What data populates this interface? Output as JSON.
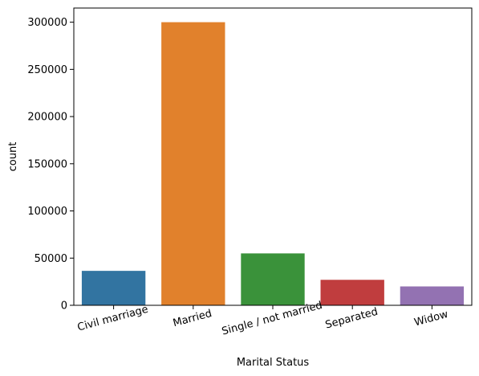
{
  "chart_data": {
    "type": "bar",
    "title": "",
    "xlabel": "Marital Status",
    "ylabel": "count",
    "categories": [
      "Civil marriage",
      "Married",
      "Single / not married",
      "Separated",
      "Widow"
    ],
    "values": [
      36500,
      300000,
      55000,
      27000,
      20000
    ],
    "colors": [
      "#3274a1",
      "#e1812c",
      "#3a923a",
      "#c03d3e",
      "#9372b2"
    ],
    "ylim": [
      0,
      315000
    ],
    "yticks": [
      0,
      50000,
      100000,
      150000,
      200000,
      250000,
      300000
    ],
    "ytick_labels": [
      "0",
      "50000",
      "100000",
      "150000",
      "200000",
      "250000",
      "300000"
    ],
    "xtick_rotation_deg": -15,
    "grid": false,
    "legend": "none"
  }
}
